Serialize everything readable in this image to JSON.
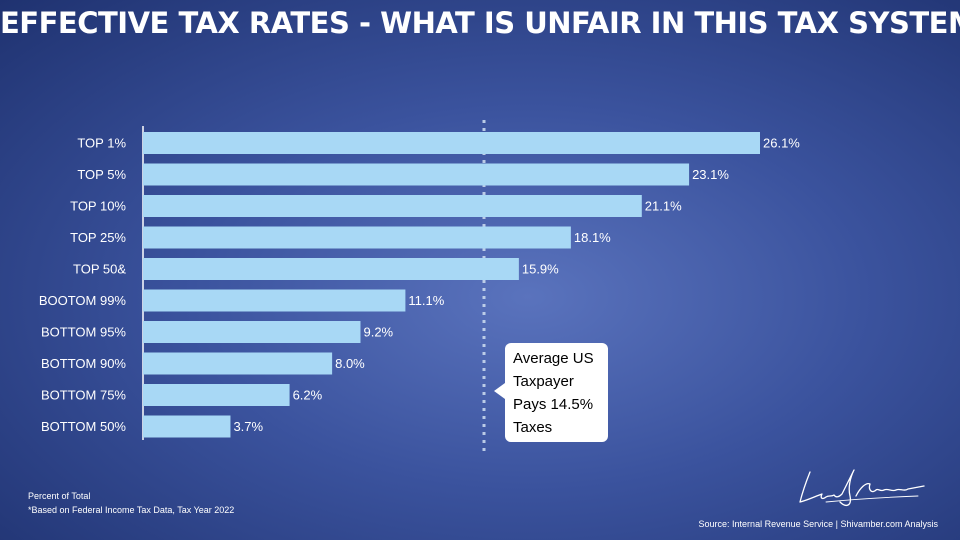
{
  "chart_data": {
    "type": "bar",
    "orientation": "horizontal",
    "title": "EFFECTIVE TAX RATES - WHAT IS UNFAIR IN THIS TAX SYSTEM?",
    "categories": [
      "TOP 1%",
      "TOP 5%",
      "TOP 10%",
      "TOP 25%",
      "TOP 50&",
      "BOOTOM 99%",
      "BOTTOM 95%",
      "BOTTOM 90%",
      "BOTTOM 75%",
      "BOTTOM 50%"
    ],
    "values": [
      26.1,
      23.1,
      21.1,
      18.1,
      15.9,
      11.1,
      9.2,
      8.0,
      6.2,
      3.7
    ],
    "value_labels": [
      "26.1%",
      "23.1%",
      "21.1%",
      "18.1%",
      "15.9%",
      "11.1%",
      "9.2%",
      "8.0%",
      "6.2%",
      "3.7%"
    ],
    "xlim": [
      0,
      26.1
    ],
    "reference_line": {
      "value": 14.5,
      "style": "dashed"
    },
    "annotation": {
      "lines": [
        "Average US",
        "Taxpayer",
        "Pays 14.5%",
        "Taxes"
      ]
    },
    "xlabel": "",
    "ylabel": ""
  },
  "footnote": {
    "line1": "Percent of Total",
    "line2": "*Based on Federal Income Tax Data, Tax Year 2022"
  },
  "signature": {
    "text": "Lance Shivamber"
  },
  "source": "Source: Internal Revenue Service | Shivamber.com Analysis",
  "colors": {
    "bar": "#a8d8f5",
    "background": "#3b539e",
    "text": "#ffffff"
  }
}
